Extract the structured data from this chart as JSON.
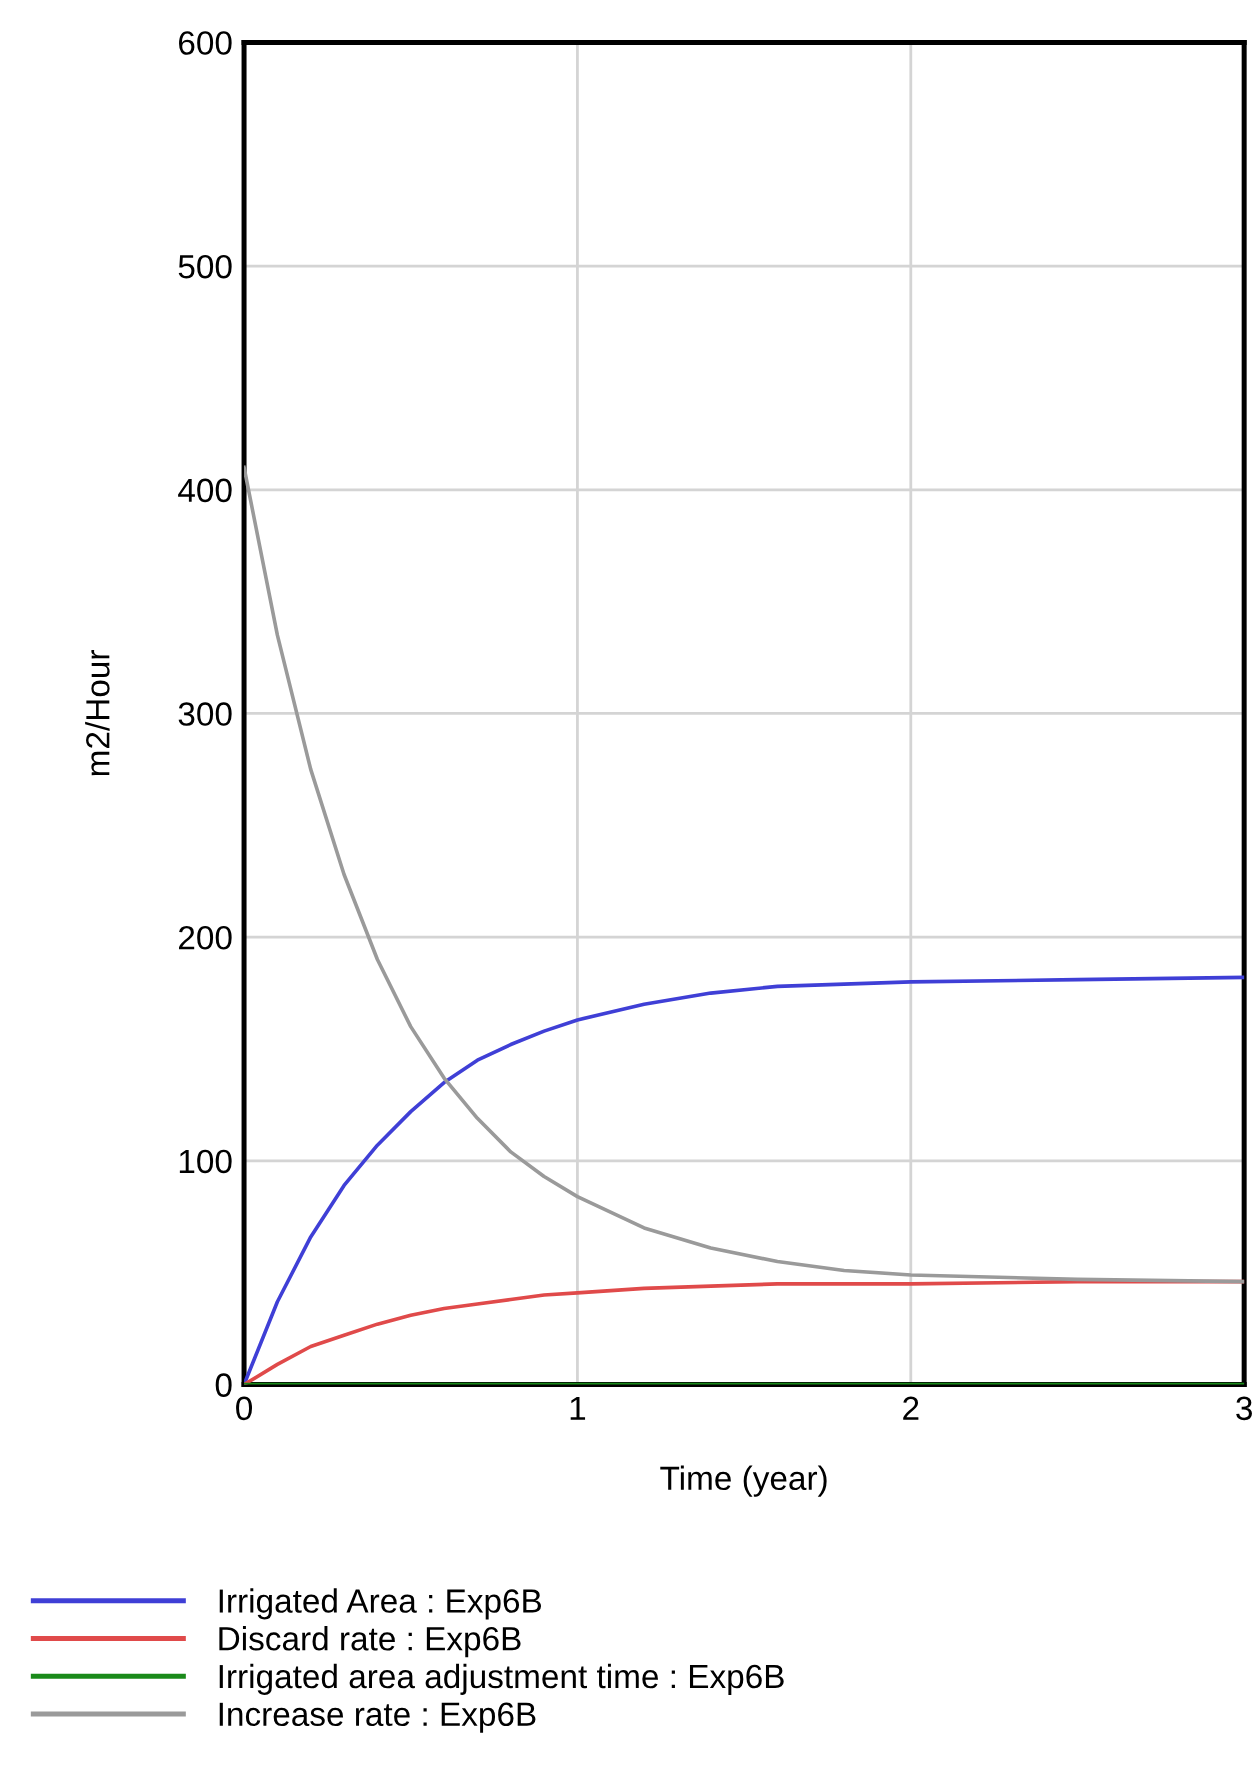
{
  "chart_data": {
    "type": "line",
    "xlabel": "Time (year)",
    "ylabel": "m2/Hour",
    "xlim": [
      0,
      3
    ],
    "ylim": [
      0,
      600
    ],
    "xticks": [
      0,
      1,
      2,
      3
    ],
    "yticks": [
      0,
      100,
      200,
      300,
      400,
      500,
      600
    ],
    "grid": true,
    "legend": "bottom",
    "marker": "none",
    "line_style": "solid",
    "series": [
      {
        "name": "Irrigated Area : Exp6B",
        "color": "#3f3fd6",
        "x": [
          0,
          0.1,
          0.2,
          0.3,
          0.4,
          0.5,
          0.6,
          0.7,
          0.8,
          0.9,
          1,
          1.2,
          1.4,
          1.6,
          1.8,
          2,
          2.5,
          3
        ],
        "values": [
          0,
          37,
          66,
          89,
          107,
          122,
          135,
          145,
          152,
          158,
          163,
          170,
          175,
          178,
          179,
          180,
          181,
          182
        ]
      },
      {
        "name": "Discard rate : Exp6B",
        "color": "#e04a4a",
        "x": [
          0,
          0.1,
          0.2,
          0.3,
          0.4,
          0.5,
          0.6,
          0.7,
          0.8,
          0.9,
          1,
          1.2,
          1.4,
          1.6,
          2,
          2.5,
          3
        ],
        "values": [
          0,
          9,
          17,
          22,
          27,
          31,
          34,
          36,
          38,
          40,
          41,
          43,
          44,
          45,
          45,
          46,
          46
        ]
      },
      {
        "name": "Irrigated area adjustment time : Exp6B",
        "color": "#1a8a1a",
        "x": [
          0,
          3
        ],
        "values": [
          0,
          0
        ]
      },
      {
        "name": "Increase rate : Exp6B",
        "color": "#9a9a9a",
        "x": [
          0,
          0.1,
          0.2,
          0.3,
          0.4,
          0.5,
          0.6,
          0.7,
          0.8,
          0.9,
          1,
          1.2,
          1.4,
          1.6,
          1.8,
          2,
          2.5,
          3
        ],
        "values": [
          410,
          335,
          275,
          228,
          190,
          160,
          137,
          119,
          104,
          93,
          84,
          70,
          61,
          55,
          51,
          49,
          47,
          46
        ]
      }
    ]
  }
}
